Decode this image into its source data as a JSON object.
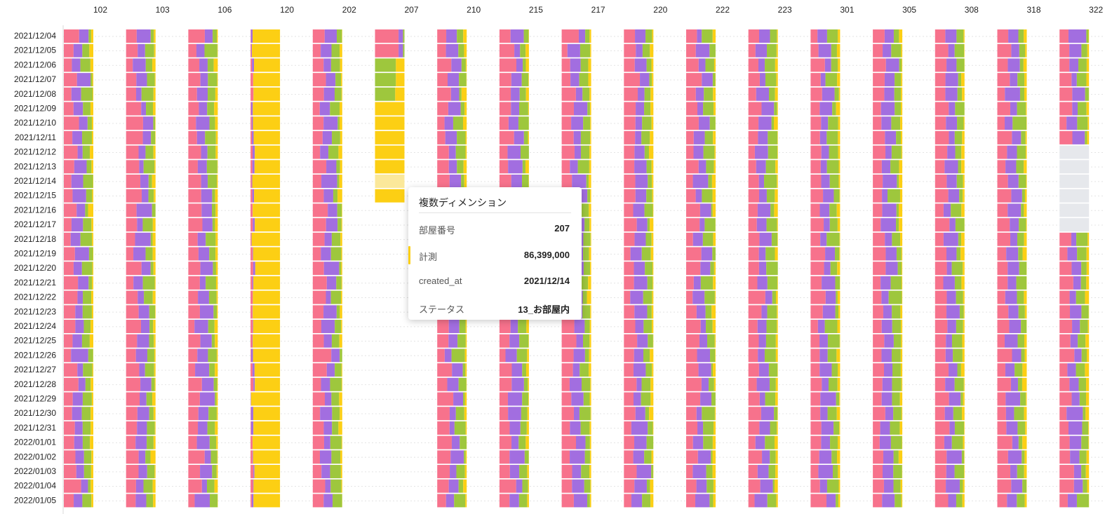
{
  "chart_data": {
    "type": "bar",
    "orientation": "horizontal-stacked, faceted by room",
    "facet_dimension_values": [
      "102",
      "103",
      "106",
      "120",
      "202",
      "207",
      "210",
      "215",
      "217",
      "220",
      "222",
      "223",
      "301",
      "305",
      "308",
      "318",
      "322"
    ],
    "dates": [
      "2021/12/04",
      "2021/12/05",
      "2021/12/06",
      "2021/12/07",
      "2021/12/08",
      "2021/12/09",
      "2021/12/10",
      "2021/12/11",
      "2021/12/12",
      "2021/12/13",
      "2021/12/14",
      "2021/12/15",
      "2021/12/16",
      "2021/12/17",
      "2021/12/18",
      "2021/12/19",
      "2021/12/20",
      "2021/12/21",
      "2021/12/22",
      "2021/12/23",
      "2021/12/24",
      "2021/12/25",
      "2021/12/26",
      "2021/12/27",
      "2021/12/28",
      "2021/12/29",
      "2021/12/30",
      "2021/12/31",
      "2022/01/01",
      "2022/01/02",
      "2022/01/03",
      "2022/01/04",
      "2022/01/05"
    ],
    "x_full_scale": 86400000,
    "stack_colors": [
      "#f7728c",
      "#a26ee0",
      "#9ec73d",
      "#fccf14",
      "#e6e8ec"
    ],
    "legend": "none",
    "grid": "dotted horizontal row lines",
    "highlighted_segment": {
      "room": "207",
      "date": "2021/12/14",
      "value": 86399000
    }
  },
  "tooltip": {
    "title": "複数ディメンション",
    "rows": [
      {
        "label": "部屋番号",
        "value": "207"
      },
      {
        "label": "計測",
        "value": "86,399,000"
      },
      {
        "label": "created_at",
        "value": "2021/12/14"
      },
      {
        "label": "ステータス",
        "value": "13_お部屋内"
      }
    ],
    "marker_color": "#fccf14"
  }
}
